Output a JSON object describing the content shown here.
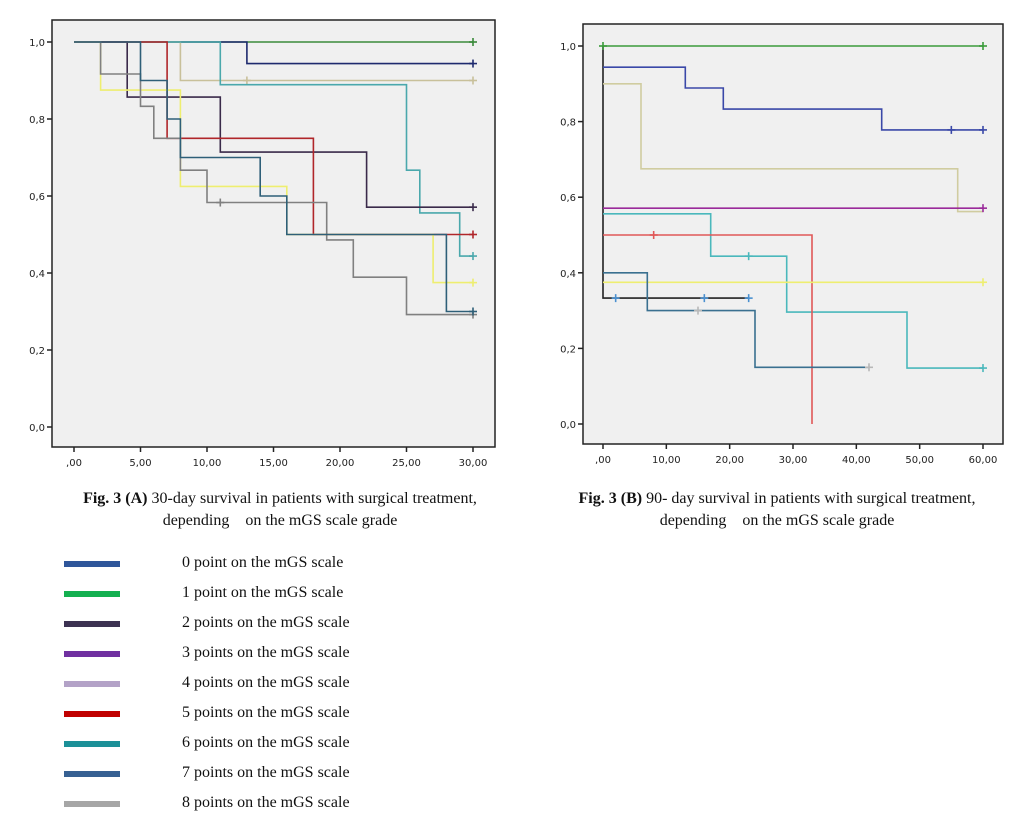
{
  "chart_data": [
    {
      "type": "line",
      "subtype": "kaplan-meier-step",
      "title": "",
      "xlabel": "",
      "ylabel": "",
      "xlim": [
        0,
        30
      ],
      "ylim": [
        0,
        1
      ],
      "x_ticks": [
        ",00",
        "5,00",
        "10,00",
        "15,00",
        "20,00",
        "25,00",
        "30,00"
      ],
      "x_tick_values": [
        0,
        5,
        10,
        15,
        20,
        25,
        30
      ],
      "y_ticks": [
        "0,0",
        "0,2",
        "0,4",
        "0,6",
        "0,8",
        "1,0"
      ],
      "y_tick_values": [
        0,
        0.2,
        0.4,
        0.6,
        0.8,
        1.0
      ],
      "grid": false,
      "series": [
        {
          "name": "1 point",
          "color": "#3a8a3a",
          "steps": [
            [
              0,
              1.0
            ],
            [
              30,
              1.0
            ]
          ],
          "censored": [
            [
              30,
              1.0
            ]
          ]
        },
        {
          "name": "0 point",
          "color": "#1e2a6e",
          "steps": [
            [
              0,
              1.0
            ],
            [
              13,
              1.0
            ],
            [
              13,
              0.944
            ],
            [
              30,
              0.944
            ]
          ],
          "censored": [
            [
              30,
              0.944
            ]
          ]
        },
        {
          "name": "4 points",
          "color": "#c8c09a",
          "steps": [
            [
              0,
              1.0
            ],
            [
              8,
              1.0
            ],
            [
              8,
              0.9
            ],
            [
              30,
              0.9
            ]
          ],
          "censored": [
            [
              13,
              0.9
            ],
            [
              30,
              0.9
            ]
          ]
        },
        {
          "name": "6 points",
          "color": "#4aa8ac",
          "steps": [
            [
              0,
              1.0
            ],
            [
              11,
              1.0
            ],
            [
              11,
              0.889
            ],
            [
              25,
              0.889
            ],
            [
              25,
              0.667
            ],
            [
              26,
              0.667
            ],
            [
              26,
              0.556
            ],
            [
              29,
              0.556
            ],
            [
              29,
              0.444
            ],
            [
              30,
              0.444
            ]
          ],
          "censored": [
            [
              30,
              0.444
            ]
          ]
        },
        {
          "name": "2 points",
          "color": "#3a2a4a",
          "steps": [
            [
              0,
              1.0
            ],
            [
              4,
              1.0
            ],
            [
              4,
              0.857
            ],
            [
              11,
              0.857
            ],
            [
              11,
              0.714
            ],
            [
              22,
              0.714
            ],
            [
              22,
              0.571
            ],
            [
              30,
              0.571
            ]
          ],
          "censored": [
            [
              30,
              0.571
            ]
          ]
        },
        {
          "name": "5 points",
          "color": "#b0262a",
          "steps": [
            [
              0,
              1.0
            ],
            [
              7,
              1.0
            ],
            [
              7,
              0.75
            ],
            [
              18,
              0.75
            ],
            [
              18,
              0.5
            ],
            [
              30,
              0.5
            ]
          ],
          "censored": [
            [
              30,
              0.5
            ]
          ]
        },
        {
          "name": "yellow",
          "color": "#eeee70",
          "steps": [
            [
              0,
              1.0
            ],
            [
              2,
              1.0
            ],
            [
              2,
              0.875
            ],
            [
              8,
              0.875
            ],
            [
              8,
              0.625
            ],
            [
              16,
              0.625
            ],
            [
              16,
              0.5
            ],
            [
              27,
              0.5
            ],
            [
              27,
              0.375
            ],
            [
              30,
              0.375
            ]
          ],
          "censored": [
            [
              30,
              0.375
            ]
          ]
        },
        {
          "name": "8 points",
          "color": "#808080",
          "steps": [
            [
              0,
              1.0
            ],
            [
              2,
              1.0
            ],
            [
              2,
              0.917
            ],
            [
              5,
              0.917
            ],
            [
              5,
              0.833
            ],
            [
              6,
              0.833
            ],
            [
              6,
              0.75
            ],
            [
              8,
              0.75
            ],
            [
              8,
              0.667
            ],
            [
              10,
              0.667
            ],
            [
              10,
              0.583
            ],
            [
              19,
              0.583
            ],
            [
              19,
              0.486
            ],
            [
              21,
              0.486
            ],
            [
              21,
              0.389
            ],
            [
              25,
              0.389
            ],
            [
              25,
              0.292
            ],
            [
              30,
              0.292
            ]
          ],
          "censored": [
            [
              11,
              0.583
            ],
            [
              30,
              0.292
            ]
          ]
        },
        {
          "name": "7 points",
          "color": "#2e5f78",
          "steps": [
            [
              0,
              1.0
            ],
            [
              5,
              1.0
            ],
            [
              5,
              0.9
            ],
            [
              7,
              0.9
            ],
            [
              7,
              0.8
            ],
            [
              8,
              0.8
            ],
            [
              8,
              0.7
            ],
            [
              14,
              0.7
            ],
            [
              14,
              0.6
            ],
            [
              16,
              0.6
            ],
            [
              16,
              0.5
            ],
            [
              28,
              0.5
            ],
            [
              28,
              0.3
            ],
            [
              30,
              0.3
            ]
          ],
          "censored": [
            [
              30,
              0.3
            ]
          ]
        }
      ]
    },
    {
      "type": "line",
      "subtype": "kaplan-meier-step",
      "title": "",
      "xlabel": "",
      "ylabel": "",
      "xlim": [
        0,
        60
      ],
      "ylim": [
        0,
        1
      ],
      "x_ticks": [
        ",00",
        "10,00",
        "20,00",
        "30,00",
        "40,00",
        "50,00",
        "60,00"
      ],
      "x_tick_values": [
        0,
        10,
        20,
        30,
        40,
        50,
        60
      ],
      "y_ticks": [
        "0,0",
        "0,2",
        "0,4",
        "0,6",
        "0,8",
        "1,0"
      ],
      "y_tick_values": [
        0,
        0.2,
        0.4,
        0.6,
        0.8,
        1.0
      ],
      "grid": false,
      "series": [
        {
          "name": "black",
          "color": "#222222",
          "steps": [
            [
              0,
              1.0
            ],
            [
              0,
              0.333
            ],
            [
              23,
              0.333
            ]
          ],
          "censored": [
            [
              2,
              0.333
            ],
            [
              16,
              0.333
            ],
            [
              23,
              0.333
            ]
          ],
          "censor_color": "#4a90d0"
        },
        {
          "name": "1 point",
          "color": "#3a9a3a",
          "steps": [
            [
              0,
              1.0
            ],
            [
              60,
              1.0
            ]
          ],
          "censored": [
            [
              0,
              1.0
            ],
            [
              60,
              1.0
            ]
          ]
        },
        {
          "name": "0 point",
          "color": "#3a48a8",
          "steps": [
            [
              0,
              0.944
            ],
            [
              13,
              0.944
            ],
            [
              13,
              0.889
            ],
            [
              19,
              0.889
            ],
            [
              19,
              0.833
            ],
            [
              44,
              0.833
            ],
            [
              44,
              0.778
            ],
            [
              60,
              0.778
            ]
          ],
          "censored": [
            [
              55,
              0.778
            ],
            [
              60,
              0.778
            ]
          ]
        },
        {
          "name": "4 points",
          "color": "#d0cca0",
          "steps": [
            [
              0,
              0.9
            ],
            [
              6,
              0.9
            ],
            [
              6,
              0.675
            ],
            [
              56,
              0.675
            ],
            [
              56,
              0.562
            ],
            [
              60,
              0.562
            ]
          ],
          "censored": []
        },
        {
          "name": "3 points",
          "color": "#9a2a9a",
          "steps": [
            [
              0,
              0.571
            ],
            [
              60,
              0.571
            ]
          ],
          "censored": [
            [
              60,
              0.571
            ]
          ]
        },
        {
          "name": "6 points",
          "color": "#4ab8bc",
          "steps": [
            [
              0,
              0.556
            ],
            [
              17,
              0.556
            ],
            [
              17,
              0.444
            ],
            [
              29,
              0.444
            ],
            [
              29,
              0.296
            ],
            [
              48,
              0.296
            ],
            [
              48,
              0.148
            ],
            [
              60,
              0.148
            ]
          ],
          "censored": [
            [
              23,
              0.444
            ],
            [
              60,
              0.148
            ]
          ]
        },
        {
          "name": "5 points",
          "color": "#e05858",
          "steps": [
            [
              0,
              0.5
            ],
            [
              33,
              0.5
            ],
            [
              33,
              0.0
            ]
          ],
          "censored": [
            [
              8,
              0.5
            ]
          ]
        },
        {
          "name": "yellow",
          "color": "#eeee70",
          "steps": [
            [
              0,
              0.375
            ],
            [
              60,
              0.375
            ]
          ],
          "censored": [
            [
              60,
              0.375
            ]
          ]
        },
        {
          "name": "7 points",
          "color": "#3a7090",
          "steps": [
            [
              0,
              0.4
            ],
            [
              7,
              0.4
            ],
            [
              7,
              0.3
            ],
            [
              24,
              0.3
            ],
            [
              24,
              0.15
            ],
            [
              42,
              0.15
            ]
          ],
          "censored": [
            [
              15,
              0.3
            ],
            [
              42,
              0.15
            ]
          ],
          "censor_color": "#b8b8b8"
        }
      ]
    }
  ],
  "captions": {
    "a_bold": "Fig. 3 (A)",
    "a_text": " 30-day survival in patients with surgical treatment,",
    "a_line2": "depending    on the mGS scale grade",
    "b_bold": "Fig. 3 (B)",
    "b_text": " 90- day survival in patients with surgical treatment,",
    "b_line2": "depending    on the mGS scale grade"
  },
  "legend": [
    {
      "label": "0 point on the mGS scale",
      "color": "#2f569a"
    },
    {
      "label": "1 point on the mGS scale",
      "color": "#14b050"
    },
    {
      "label": "2 points on the mGS scale",
      "color": "#3c3252"
    },
    {
      "label": "3 points on the mGS scale",
      "color": "#7030a0"
    },
    {
      "label": "4 points on the mGS scale",
      "color": "#b3a2c7"
    },
    {
      "label": "5 points on the mGS scale",
      "color": "#c00000"
    },
    {
      "label": "6 points on the mGS scale",
      "color": "#1c9098"
    },
    {
      "label": "7 points on the mGS scale",
      "color": "#366092"
    },
    {
      "label": "8 points on the mGS scale",
      "color": "#a6a6a6"
    }
  ]
}
